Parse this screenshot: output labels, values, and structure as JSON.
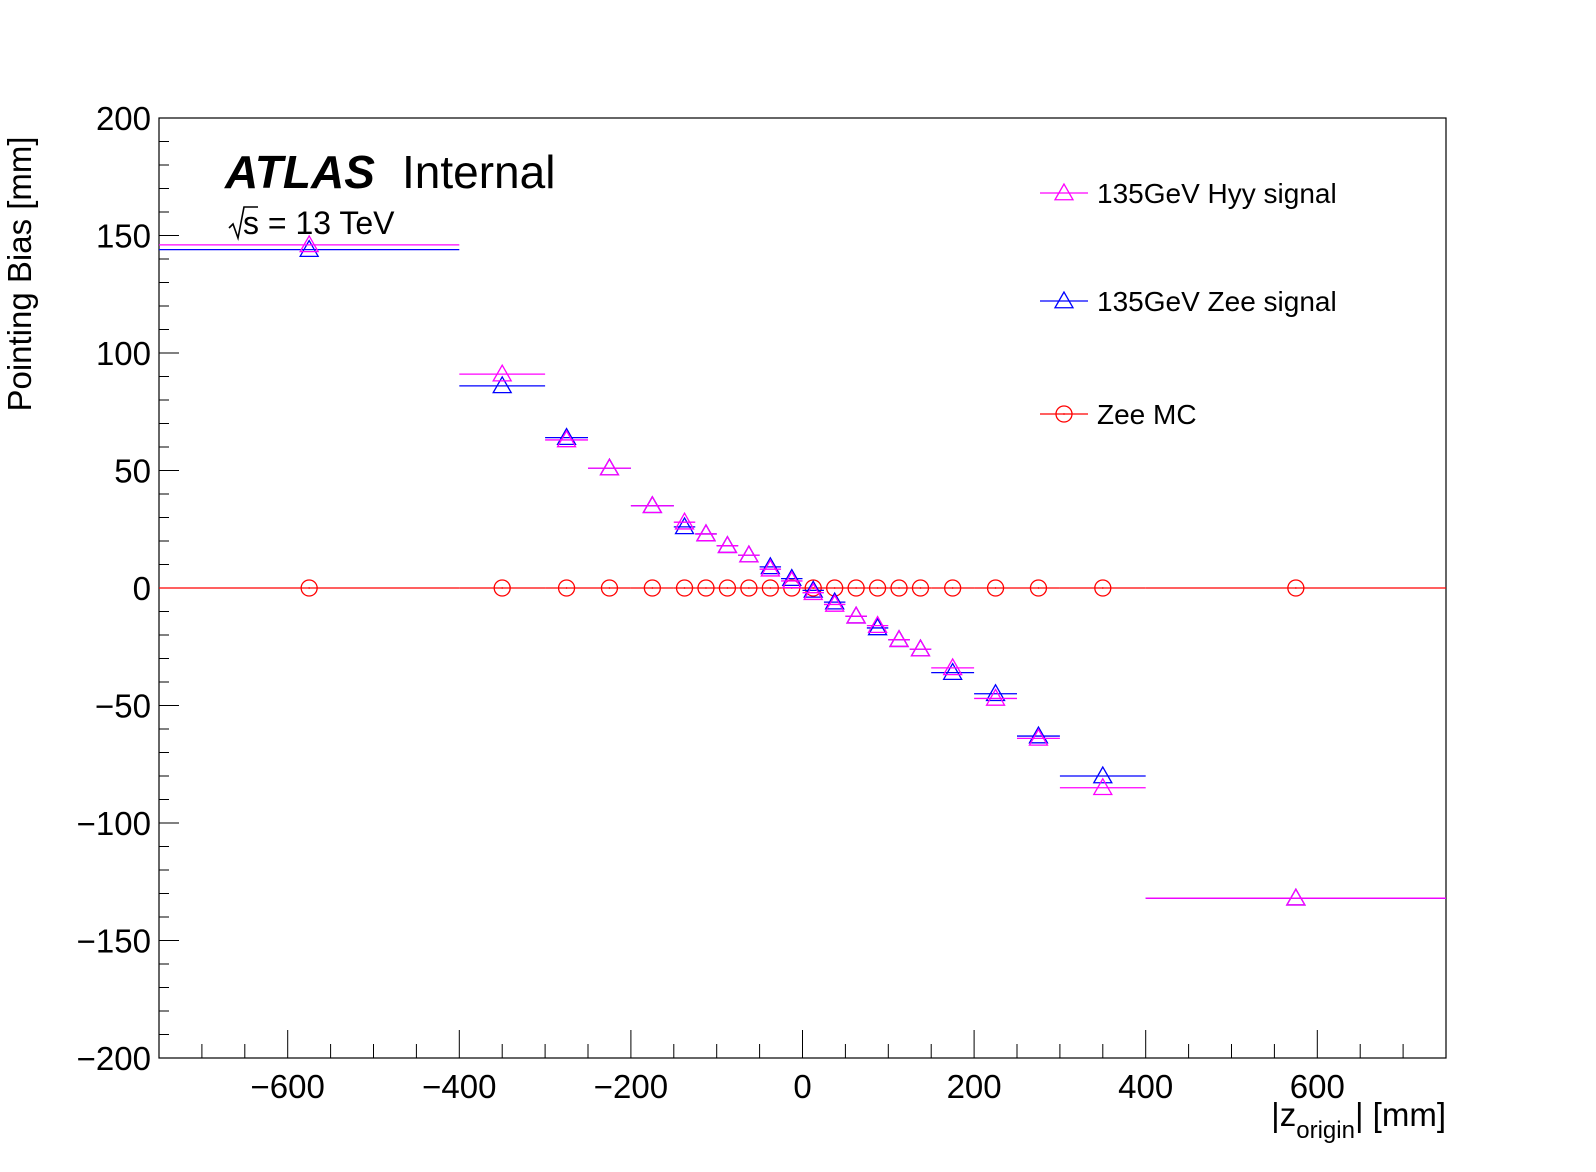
{
  "chart_data": {
    "type": "scatter",
    "xlabel": "|z_origin| [mm]",
    "xlabel_main": "|z",
    "xlabel_sub": "origin",
    "xlabel_tail": "| [mm]",
    "ylabel": "Pointing Bias [mm]",
    "xlim": [
      -750,
      750
    ],
    "ylim": [
      -200,
      200
    ],
    "x_ticks": [
      -600,
      -400,
      -200,
      0,
      200,
      400,
      600
    ],
    "x_tick_labels": [
      "−600",
      "−400",
      "−200",
      "0",
      "200",
      "400",
      "600"
    ],
    "y_ticks": [
      200,
      150,
      100,
      50,
      0,
      -50,
      -100,
      -150,
      -200
    ],
    "y_tick_labels": [
      "200",
      "150",
      "100",
      "50",
      "0",
      "−50",
      "−100",
      "−150",
      "−200"
    ],
    "grid": false,
    "legend_position": "top-right",
    "annotation": {
      "atlas": "ATLAS",
      "status": "Internal",
      "energy": "s = 13 TeV"
    },
    "bins": [
      {
        "lo": -750,
        "hi": -400,
        "x": -575
      },
      {
        "lo": -400,
        "hi": -300,
        "x": -350
      },
      {
        "lo": -300,
        "hi": -250,
        "x": -275
      },
      {
        "lo": -250,
        "hi": -200,
        "x": -225
      },
      {
        "lo": -200,
        "hi": -150,
        "x": -175
      },
      {
        "lo": -150,
        "hi": -125,
        "x": -137.5
      },
      {
        "lo": -125,
        "hi": -100,
        "x": -112.5
      },
      {
        "lo": -100,
        "hi": -75,
        "x": -87.5
      },
      {
        "lo": -75,
        "hi": -50,
        "x": -62.5
      },
      {
        "lo": -50,
        "hi": -25,
        "x": -37.5
      },
      {
        "lo": -25,
        "hi": 0,
        "x": -12.5
      },
      {
        "lo": 0,
        "hi": 25,
        "x": 12.5
      },
      {
        "lo": 25,
        "hi": 50,
        "x": 37.5
      },
      {
        "lo": 50,
        "hi": 75,
        "x": 62.5
      },
      {
        "lo": 75,
        "hi": 100,
        "x": 87.5
      },
      {
        "lo": 100,
        "hi": 125,
        "x": 112.5
      },
      {
        "lo": 125,
        "hi": 150,
        "x": 137.5
      },
      {
        "lo": 150,
        "hi": 200,
        "x": 175
      },
      {
        "lo": 200,
        "hi": 250,
        "x": 225
      },
      {
        "lo": 250,
        "hi": 300,
        "x": 275
      },
      {
        "lo": 300,
        "hi": 400,
        "x": 350
      },
      {
        "lo": 400,
        "hi": 750,
        "x": 575
      }
    ],
    "series": [
      {
        "name": "135GeV Hyy signal",
        "color": "#ff00ff",
        "marker": "open-triangle",
        "values": [
          146,
          91,
          63,
          51,
          35,
          28,
          23,
          18,
          14,
          8,
          3,
          -2,
          -7,
          -12,
          -16,
          -22,
          -26,
          -34,
          -47,
          -64,
          -85,
          -132
        ]
      },
      {
        "name": "135GeV Zee signal",
        "color": "#0000ff",
        "marker": "open-triangle",
        "values": [
          144,
          86,
          64,
          51,
          35,
          26,
          23,
          18,
          14,
          9,
          4,
          -1,
          -6,
          -12,
          -17,
          -22,
          -26,
          -36,
          -45,
          -63,
          -80,
          -132
        ]
      },
      {
        "name": "Zee MC",
        "color": "#ff0000",
        "marker": "open-circle",
        "values": [
          0,
          0,
          0,
          0,
          0,
          0,
          0,
          0,
          0,
          0,
          0,
          0,
          0,
          0,
          0,
          0,
          0,
          0,
          0,
          0,
          0,
          0
        ]
      }
    ]
  }
}
